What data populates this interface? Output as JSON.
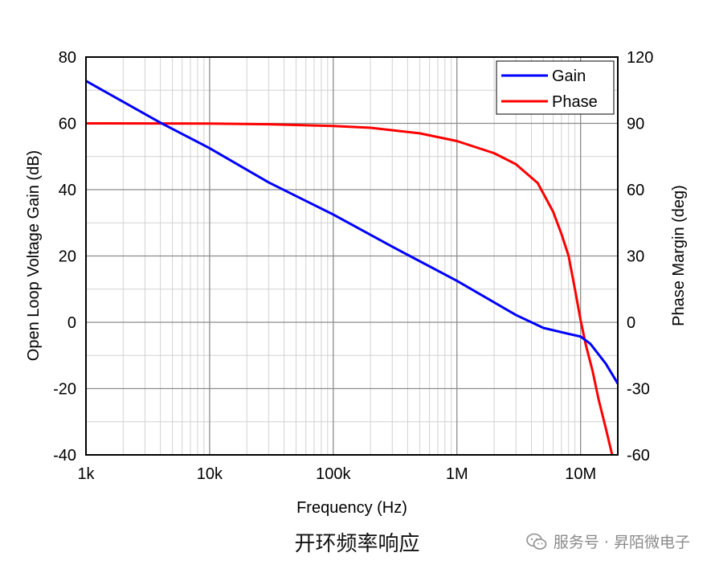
{
  "chart_data": {
    "type": "line",
    "xscale": "log",
    "xlim": [
      1000,
      20000000
    ],
    "ylim_left": [
      -40,
      80
    ],
    "ylim_right": [
      -60,
      120
    ],
    "xlabel": "Frequency (Hz)",
    "ylabel_left": "Open Loop Voltage Gain (dB)",
    "ylabel_right": "Phase Margin (deg)",
    "x_ticks": [
      1000,
      10000,
      100000,
      1000000,
      10000000
    ],
    "x_tick_labels": [
      "1k",
      "10k",
      "100k",
      "1M",
      "10M"
    ],
    "y_left_ticks": [
      80,
      60,
      40,
      20,
      0,
      -20,
      -40
    ],
    "y_left_tick_labels": [
      "80",
      "60",
      "40",
      "20",
      "0",
      "-20",
      "-40"
    ],
    "y_right_ticks": [
      120,
      90,
      60,
      30,
      0,
      -30,
      -60
    ],
    "y_right_tick_labels": [
      "120",
      "90",
      "60",
      "30",
      "0",
      "-30",
      "-60"
    ],
    "grid": true,
    "legend_position": "top-right",
    "series": [
      {
        "name": "Gain",
        "axis": "left",
        "color": "#0000ff",
        "x": [
          1000,
          2000,
          4000,
          10000,
          30000,
          100000,
          300000,
          1000000,
          3000000,
          5000000,
          8000000,
          10000000,
          12000000,
          16000000,
          20000000
        ],
        "y": [
          72.8,
          66.5,
          60.2,
          52.5,
          42.2,
          32.5,
          22.8,
          12.5,
          2.2,
          -1.7,
          -3.5,
          -4.3,
          -6.5,
          -12.5,
          -18.5
        ]
      },
      {
        "name": "Phase",
        "axis": "right",
        "color": "#ff0000",
        "x": [
          1000,
          10000,
          30000,
          100000,
          200000,
          500000,
          1000000,
          2000000,
          3000000,
          4500000,
          6000000,
          7000000,
          8000000,
          9000000,
          10000000,
          11000000,
          12500000,
          14000000,
          16000000,
          18000000
        ],
        "y": [
          90,
          89.9,
          89.6,
          88.8,
          88,
          85.5,
          82,
          76.5,
          71.5,
          63,
          50,
          40,
          30,
          15,
          1,
          -10,
          -22,
          -35,
          -48,
          -60
        ]
      }
    ]
  },
  "caption": "开环频率响应",
  "watermark": {
    "icon": "wechat-icon",
    "text": "服务号 · 昇陌微电子"
  }
}
